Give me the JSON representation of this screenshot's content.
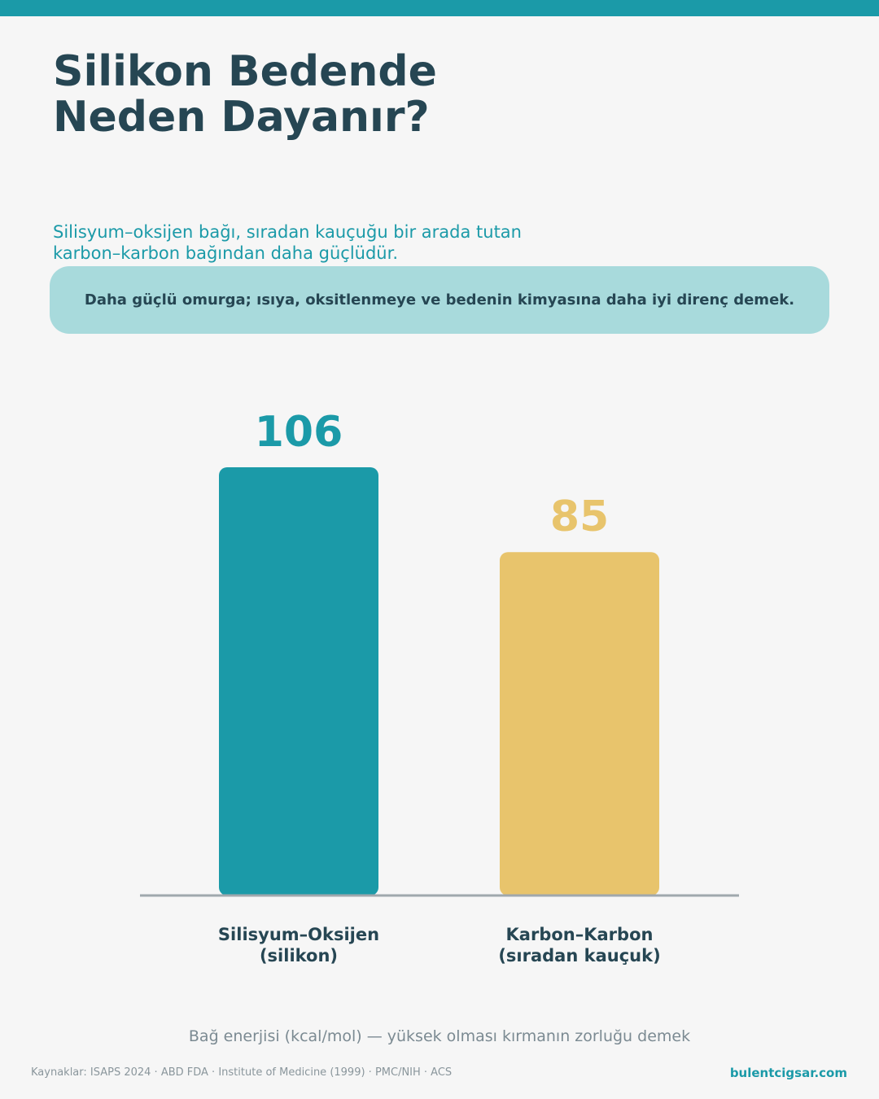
{
  "chart_data": {
    "type": "bar",
    "title": "Silikon Bedende\nNeden Dayanır?",
    "subtitle": "Silisyum–oksijen bağı, sıradan kauçuğu bir arada tutan\nkarbon–karbon bağından daha güçlüdür.",
    "annotation": "Daha güçlü omurga; ısıya, oksitlenmeye ve bedenin kimyasına daha iyi direnç demek.",
    "categories": [
      "Silisyum–Oksijen\n(silikon)",
      "Karbon–Karbon\n(sıradan kauçuk)"
    ],
    "values": [
      106,
      85
    ],
    "colors": [
      "#1b9aa8",
      "#e8c46c"
    ],
    "y_label": "Bağ enerjisi (kcal/mol) — yüksek olması kırmanın zorluğu demek"
  },
  "footer": {
    "sources": "Kaynaklar: ISAPS 2024 · ABD FDA · Institute of Medicine (1999) · PMC/NIH · ACS",
    "website": "bulentcigsar.com"
  }
}
